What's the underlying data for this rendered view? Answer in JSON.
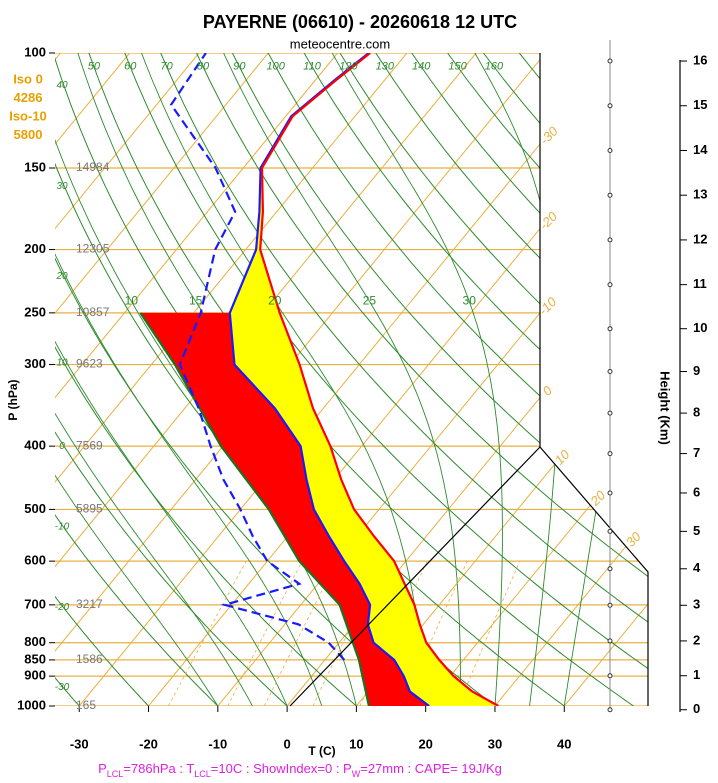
{
  "chart_data": {
    "type": "skewt",
    "title": "PAYERNE (06610) - 20260618 12 UTC",
    "subtitle": "meteocentre.com",
    "ylabel": "P (hPa)",
    "xlabel": "T (C)",
    "y2label": "Height (Km)",
    "ylim": [
      1000,
      100
    ],
    "yticks": [
      100,
      150,
      200,
      250,
      300,
      400,
      500,
      600,
      700,
      800,
      850,
      900,
      1000
    ],
    "log_scale": true,
    "xlim": [
      -33.5,
      36.5
    ],
    "xticks": [
      -30,
      -20,
      -10,
      0,
      10,
      20,
      30,
      40
    ],
    "height_ticks": [
      0,
      1,
      2,
      3,
      4,
      5,
      6,
      7,
      8,
      9,
      10,
      11,
      12,
      13,
      14,
      15,
      16
    ],
    "isobar_height_levels": [
      150,
      200,
      250,
      300,
      400,
      500,
      700,
      850,
      1000
    ],
    "isobar_heights": [
      14984,
      12305,
      10857,
      9623,
      7569,
      5895,
      3217,
      1586,
      165
    ],
    "freezing_levels": [
      "Iso 0",
      "4286",
      "Iso-10",
      "5800"
    ],
    "dry_adiabat_labels": [
      50,
      60,
      70,
      80,
      90,
      100,
      110,
      120,
      130,
      140,
      150,
      160
    ],
    "dry_adiabat_edge_labels": [
      40,
      30,
      20,
      10,
      0,
      -10,
      -20,
      -30
    ],
    "moist_adiabat_labels": [
      10,
      15,
      20,
      25,
      30
    ],
    "isotherm_labels": [
      -30,
      -20,
      -10,
      0,
      10,
      20,
      30
    ],
    "grid": true,
    "series": [
      {
        "color": "#1f6f1f",
        "fill": "#ff0000",
        "pressure": [
          1000,
          925,
          850,
          700,
          600,
          500,
          400,
          300,
          250
        ],
        "values": [
          11.8,
          8.5,
          4.9,
          -4.4,
          -15.4,
          -25.9,
          -40.3,
          -56.6,
          -67.7
        ]
      },
      {
        "color": "#1a1aff",
        "fill": "#ffff00",
        "pressure": [
          1000,
          950,
          900,
          850,
          800,
          750,
          700,
          650,
          600,
          550,
          500,
          450,
          400,
          350,
          300,
          250,
          200,
          175,
          150,
          125,
          110,
          100
        ],
        "values": [
          20.5,
          16,
          13.3,
          10,
          5,
          2,
          0,
          -4,
          -8.9,
          -14,
          -19.4,
          -24,
          -28.8,
          -37,
          -48,
          -54.8,
          -58.5,
          -62.5,
          -67.5,
          -69.2,
          -67.2,
          -65.5
        ]
      },
      {
        "color": "#ff0000",
        "pressure": [
          1000,
          950,
          900,
          850,
          800,
          750,
          700,
          650,
          600,
          550,
          500,
          450,
          400,
          350,
          300,
          250,
          200,
          175,
          150,
          125,
          110,
          100
        ],
        "values": [
          30.5,
          25,
          20.5,
          16.5,
          12.6,
          9.5,
          6.4,
          2.5,
          -1.7,
          -7.5,
          -13.6,
          -19,
          -24.5,
          -31.5,
          -38.6,
          -47.6,
          -57.9,
          -62,
          -67.3,
          -69,
          -67,
          -65.3
        ]
      },
      {
        "color": "#1a1aff",
        "dash": true,
        "pressure": [
          850,
          800,
          750,
          700,
          650,
          600,
          550,
          500,
          450,
          400,
          350,
          300,
          250,
          200,
          175,
          150,
          120,
          100
        ],
        "values": [
          2.8,
          -1.5,
          -8,
          -21,
          -12.7,
          -20,
          -25,
          -30,
          -36,
          -41.8,
          -48,
          -55.9,
          -59,
          -64.4,
          -66,
          -74,
          -87.9,
          -89
        ]
      }
    ],
    "footer": [
      "P",
      "LCL",
      "=786hPa : T",
      "LCL",
      "=10C : ShowIndex=0 : P",
      "W",
      "=27mm : CAPE= 19J/Kg"
    ]
  }
}
